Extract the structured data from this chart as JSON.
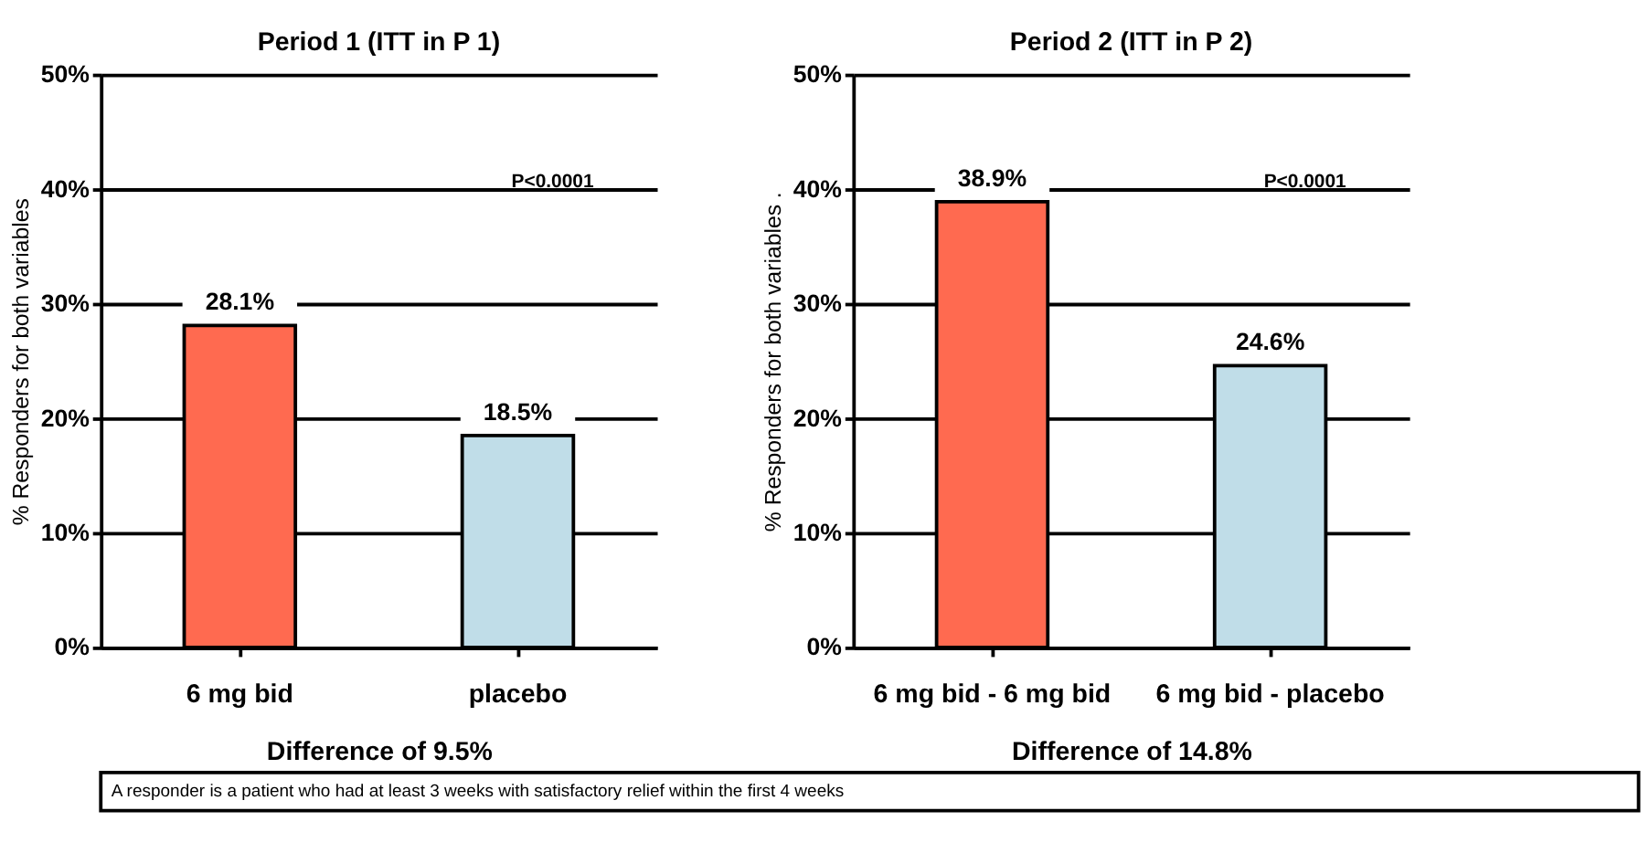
{
  "chart_data": [
    {
      "type": "bar",
      "title": "Period 1 (ITT in P 1)",
      "ylabel": "% Responders for both variables",
      "xlabel": "Difference of 9.5%",
      "categories": [
        "6 mg bid",
        "placebo"
      ],
      "values": [
        28.1,
        18.5
      ],
      "colors": [
        "#ff6a50",
        "#c0dde8"
      ],
      "value_labels": [
        "28.1%",
        "18.5%"
      ],
      "ylim": [
        0,
        50
      ],
      "yticks": [
        {
          "value": 0,
          "label": "0%"
        },
        {
          "value": 10,
          "label": "10%"
        },
        {
          "value": 20,
          "label": "20%"
        },
        {
          "value": 30,
          "label": "30%"
        },
        {
          "value": 40,
          "label": "40%"
        },
        {
          "value": 50,
          "label": "50%"
        }
      ],
      "grid": "y",
      "annotations": [
        "P<0.0001",
        "A responder is a patient who had at least 3 weeks with satisfactory relief within the first 4 weeks"
      ]
    },
    {
      "type": "bar",
      "title": "Period 2 (ITT in P 2)",
      "ylabel": "% Responders for both variables .",
      "xlabel": "Difference of 14.8%",
      "categories": [
        "6 mg bid - 6 mg bid",
        "6 mg bid - placebo"
      ],
      "values": [
        38.9,
        24.6
      ],
      "colors": [
        "#ff6a50",
        "#c0dde8"
      ],
      "value_labels": [
        "38.9%",
        "24.6%"
      ],
      "ylim": [
        0,
        50
      ],
      "yticks": [
        {
          "value": 0,
          "label": "0%"
        },
        {
          "value": 10,
          "label": "10%"
        },
        {
          "value": 20,
          "label": "20%"
        },
        {
          "value": 30,
          "label": "30%"
        },
        {
          "value": 40,
          "label": "40%"
        },
        {
          "value": 50,
          "label": "50%"
        }
      ],
      "grid": "y",
      "annotations": [
        "P<0.0001"
      ]
    }
  ]
}
